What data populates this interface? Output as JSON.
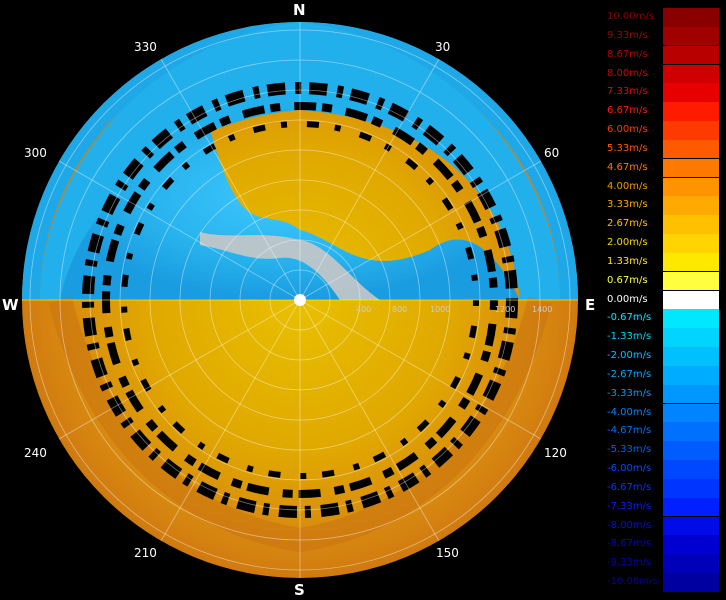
{
  "compass": {
    "north": "N",
    "south": "S",
    "east": "E",
    "west": "W"
  },
  "azimuth_labels": [
    "30",
    "60",
    "120",
    "150",
    "210",
    "240",
    "300",
    "330"
  ],
  "range_labels": [
    "400",
    "800",
    "1000",
    "1200",
    "1400"
  ],
  "colorbar": {
    "labels": [
      "10.00m/s",
      "9.33m/s",
      "8.67m/s",
      "8.00m/s",
      "7.33m/s",
      "6.67m/s",
      "6.00m/s",
      "5.33m/s",
      "4.67m/s",
      "4.00m/s",
      "3.33m/s",
      "2.67m/s",
      "2.00m/s",
      "1.33m/s",
      "0.67m/s",
      "0.00m/s",
      "-0.67m/s",
      "-1.33m/s",
      "-2.00m/s",
      "-2.67m/s",
      "-3.33m/s",
      "-4.00m/s",
      "-4.67m/s",
      "-5.33m/s",
      "-6.00m/s",
      "-6.67m/s",
      "-7.33m/s",
      "-8.00m/s",
      "-8.67m/s",
      "-9.33m/s",
      "-10.00m/s"
    ],
    "colors": [
      "#8a0000",
      "#a00000",
      "#b80000",
      "#d00000",
      "#e80000",
      "#ff1a00",
      "#ff3a00",
      "#ff5a00",
      "#ff7800",
      "#ff9400",
      "#ffaa00",
      "#ffc000",
      "#ffd400",
      "#ffe800",
      "#ffff40",
      "#ffffff",
      "#00e8ff",
      "#00d4ff",
      "#00c0ff",
      "#00acff",
      "#0098ff",
      "#0084ff",
      "#0070ff",
      "#005cff",
      "#0048ff",
      "#0034ff",
      "#0020ff",
      "#000ce8",
      "#0000d0",
      "#0000b8",
      "#0000a0"
    ]
  }
}
